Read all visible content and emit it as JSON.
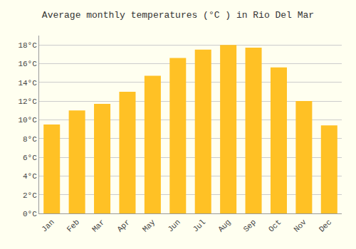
{
  "chart_data": {
    "type": "bar",
    "title": "Average monthly temperatures (°C ) in Rio Del Mar",
    "categories": [
      "Jan",
      "Feb",
      "Mar",
      "Apr",
      "May",
      "Jun",
      "Jul",
      "Aug",
      "Sep",
      "Oct",
      "Nov",
      "Dec"
    ],
    "values": [
      9.5,
      11.0,
      11.7,
      13.0,
      14.7,
      16.6,
      17.5,
      18.0,
      17.7,
      15.6,
      12.0,
      9.4
    ],
    "color": "#FFC125",
    "ylim": [
      0,
      19
    ],
    "yticks": [
      {
        "value": 0,
        "label": "0°C"
      },
      {
        "value": 2,
        "label": "2°C"
      },
      {
        "value": 4,
        "label": "4°C"
      },
      {
        "value": 6,
        "label": "6°C"
      },
      {
        "value": 8,
        "label": "8°C"
      },
      {
        "value": 10,
        "label": "10°C"
      },
      {
        "value": 12,
        "label": "12°C"
      },
      {
        "value": 14,
        "label": "14°C"
      },
      {
        "value": 16,
        "label": "16°C"
      },
      {
        "value": 18,
        "label": "18°C"
      }
    ],
    "grid": true
  }
}
